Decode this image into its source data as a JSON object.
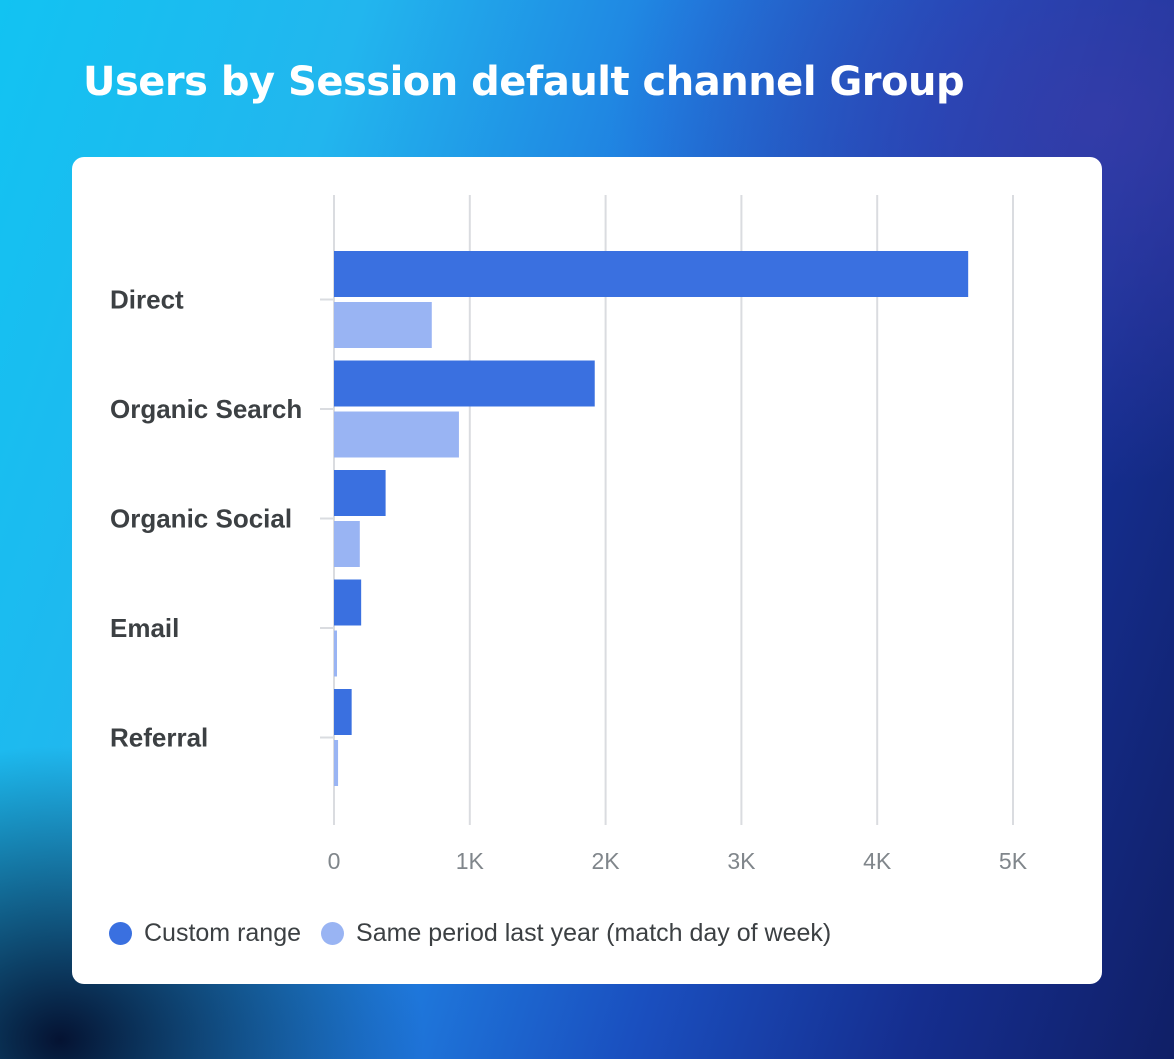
{
  "page": {
    "title": "Users by Session default channel Group"
  },
  "colors": {
    "custom_range": "#3a70e0",
    "last_year": "#99b4f3",
    "grid": "#dadce0"
  },
  "chart_data": {
    "type": "bar",
    "orientation": "horizontal",
    "title": "Users by Session default channel Group",
    "categories": [
      "Direct",
      "Organic Search",
      "Organic Social",
      "Email",
      "Referral"
    ],
    "series": [
      {
        "name": "Custom range",
        "values": [
          4670,
          1920,
          380,
          200,
          130
        ]
      },
      {
        "name": "Same period last year (match day of week)",
        "values": [
          720,
          920,
          190,
          20,
          30
        ]
      }
    ],
    "xlim": [
      0,
      5000
    ],
    "x_ticks": [
      "0",
      "1K",
      "2K",
      "3K",
      "4K",
      "5K"
    ],
    "grid": true,
    "legend": "bottom-left"
  }
}
